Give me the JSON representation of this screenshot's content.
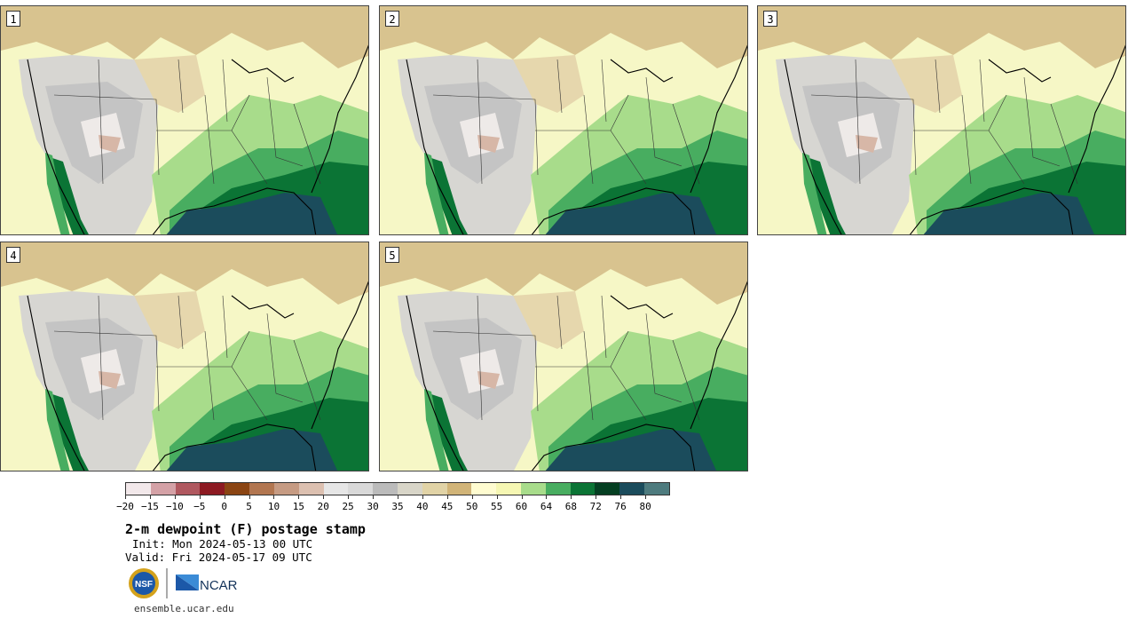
{
  "panels": [
    {
      "label": "1"
    },
    {
      "label": "2"
    },
    {
      "label": "3"
    },
    {
      "label": "4"
    },
    {
      "label": "5"
    }
  ],
  "colorbar": {
    "colors": [
      "#f2e8ea",
      "#d4a1a6",
      "#b0585f",
      "#8d1a22",
      "#8b4513",
      "#b27650",
      "#c69b83",
      "#dcc0b0",
      "#e6e6e6",
      "#d9d9d9",
      "#bbbbbb",
      "#d8d5c8",
      "#e1d3a6",
      "#d1b478",
      "#fffcd0",
      "#f6f7b3",
      "#a8dc8b",
      "#48ad60",
      "#0b7435",
      "#053f22",
      "#1b4c5c",
      "#4e7b7e"
    ],
    "labels": [
      "−20",
      "−15",
      "−10",
      "−5",
      "0",
      "5",
      "10",
      "15",
      "20",
      "25",
      "30",
      "35",
      "40",
      "45",
      "50",
      "55",
      "60",
      "64",
      "68",
      "72",
      "76",
      "80"
    ]
  },
  "title": "2-m dewpoint (F) postage stamp",
  "init": "Init: Mon 2024-05-13 00 UTC",
  "valid": "Valid: Fri 2024-05-17 09 UTC",
  "logos": {
    "nsf": "NSF",
    "ncar": "NCAR"
  },
  "url": "ensemble.ucar.edu"
}
